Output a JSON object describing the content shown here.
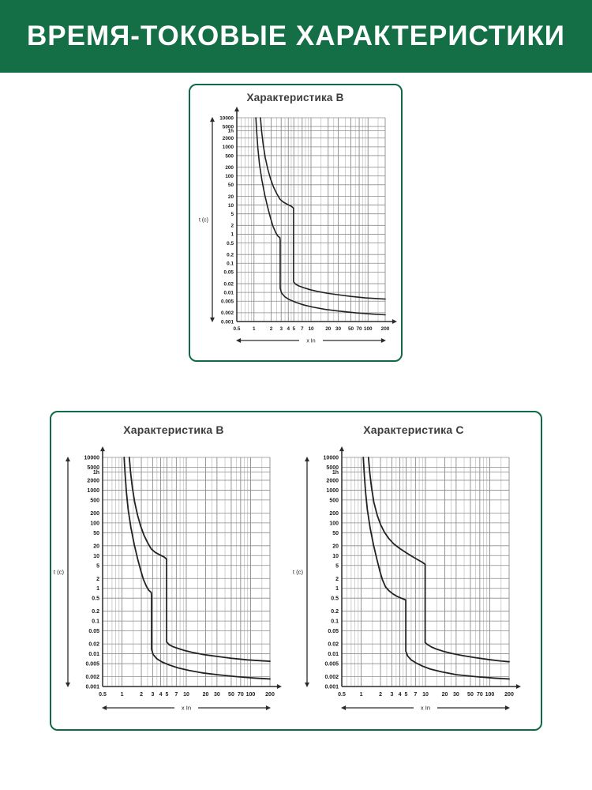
{
  "header": {
    "title": "ВРЕМЯ-ТОКОВЫЕ ХАРАКТЕРИСТИКИ",
    "bg": "#156f46",
    "fg": "#ffffff"
  },
  "colors": {
    "card_border": "#0e6b45",
    "curve": "#222222",
    "grid_major": "#8c8c8c",
    "grid_minor": "#bcbcbc",
    "axis": "#2b2b2b",
    "tick_text": "#1c1c1c",
    "title_text": "#3c3c3c"
  },
  "axes_common": {
    "xlabel": "x In",
    "ylabel": "t (c)",
    "xscale": "log",
    "yscale": "log",
    "xlim": [
      0.5,
      200
    ],
    "ylim": [
      0.001,
      10000
    ],
    "grid": true,
    "x_ticks": [
      {
        "v": 0.5,
        "l": "0.5"
      },
      {
        "v": 1,
        "l": "1"
      },
      {
        "v": 2,
        "l": "2"
      },
      {
        "v": 3,
        "l": "3"
      },
      {
        "v": 4,
        "l": "4"
      },
      {
        "v": 5,
        "l": "5"
      },
      {
        "v": 7,
        "l": "7"
      },
      {
        "v": 10,
        "l": "10"
      },
      {
        "v": 20,
        "l": "20"
      },
      {
        "v": 30,
        "l": "30"
      },
      {
        "v": 50,
        "l": "50"
      },
      {
        "v": 70,
        "l": "70"
      },
      {
        "v": 100,
        "l": "100"
      },
      {
        "v": 200,
        "l": "200"
      }
    ],
    "x_grid_minor": [
      0.6,
      0.7,
      0.8,
      0.9,
      1.5,
      2.5,
      3.5,
      4.5,
      6,
      8,
      9,
      15,
      25,
      40,
      60,
      80,
      90,
      150
    ],
    "y_ticks": [
      {
        "v": 10000,
        "l": "10000"
      },
      {
        "v": 5000,
        "l": "5000"
      },
      {
        "v": 3600,
        "l": "1h"
      },
      {
        "v": 2000,
        "l": "2000"
      },
      {
        "v": 1000,
        "l": "1000"
      },
      {
        "v": 500,
        "l": "500"
      },
      {
        "v": 200,
        "l": "200"
      },
      {
        "v": 100,
        "l": "100"
      },
      {
        "v": 50,
        "l": "50"
      },
      {
        "v": 20,
        "l": "20"
      },
      {
        "v": 10,
        "l": "10"
      },
      {
        "v": 5,
        "l": "5"
      },
      {
        "v": 2,
        "l": "2"
      },
      {
        "v": 1,
        "l": "1"
      },
      {
        "v": 0.5,
        "l": "0.5"
      },
      {
        "v": 0.2,
        "l": "0.2"
      },
      {
        "v": 0.1,
        "l": "0.1"
      },
      {
        "v": 0.05,
        "l": "0.05"
      },
      {
        "v": 0.02,
        "l": "0.02"
      },
      {
        "v": 0.01,
        "l": "0.01"
      },
      {
        "v": 0.005,
        "l": "0.005"
      },
      {
        "v": 0.002,
        "l": "0.002"
      },
      {
        "v": 0.001,
        "l": "0.001"
      }
    ]
  },
  "chart_data": [
    {
      "id": "top-characteristic-b",
      "type": "line",
      "title": "Характеристика B",
      "xlabel": "x In",
      "ylabel": "t (c)",
      "xlim": [
        0.5,
        200
      ],
      "ylim": [
        0.001,
        10000
      ],
      "series": [
        {
          "name": "lower-limit",
          "points": [
            [
              1.08,
              10000
            ],
            [
              1.12,
              3000
            ],
            [
              1.17,
              900
            ],
            [
              1.25,
              250
            ],
            [
              1.38,
              70
            ],
            [
              1.55,
              22
            ],
            [
              1.75,
              8
            ],
            [
              1.95,
              3.6
            ],
            [
              2.15,
              1.9
            ],
            [
              2.4,
              1.15
            ],
            [
              2.6,
              0.88
            ],
            [
              2.85,
              0.75
            ],
            [
              2.88,
              0.6
            ],
            [
              2.88,
              0.014
            ],
            [
              3.05,
              0.0095
            ],
            [
              3.5,
              0.007
            ],
            [
              4.2,
              0.0056
            ],
            [
              5.5,
              0.0045
            ],
            [
              7.5,
              0.0037
            ],
            [
              11,
              0.0031
            ],
            [
              18,
              0.0026
            ],
            [
              30,
              0.0023
            ],
            [
              60,
              0.002
            ],
            [
              120,
              0.0018
            ],
            [
              200,
              0.0017
            ]
          ]
        },
        {
          "name": "upper-limit",
          "points": [
            [
              1.3,
              10000
            ],
            [
              1.36,
              3500
            ],
            [
              1.45,
              1200
            ],
            [
              1.58,
              420
            ],
            [
              1.75,
              170
            ],
            [
              1.95,
              80
            ],
            [
              2.2,
              42
            ],
            [
              2.5,
              25
            ],
            [
              2.85,
              16
            ],
            [
              3.3,
              12.5
            ],
            [
              3.9,
              10.5
            ],
            [
              4.55,
              9
            ],
            [
              4.95,
              7.8
            ],
            [
              4.95,
              0.023
            ],
            [
              5.4,
              0.019
            ],
            [
              6.2,
              0.0165
            ],
            [
              7.5,
              0.0145
            ],
            [
              9.5,
              0.0125
            ],
            [
              13,
              0.0108
            ],
            [
              19,
              0.0094
            ],
            [
              30,
              0.0083
            ],
            [
              50,
              0.0073
            ],
            [
              90,
              0.0065
            ],
            [
              150,
              0.0061
            ],
            [
              200,
              0.0059
            ]
          ]
        }
      ]
    },
    {
      "id": "bottom-characteristic-b",
      "type": "line",
      "title": "Характеристика B",
      "xlabel": "x In",
      "ylabel": "t (c)",
      "xlim": [
        0.5,
        200
      ],
      "ylim": [
        0.001,
        10000
      ],
      "series": [
        {
          "name": "lower-limit",
          "points": [
            [
              1.08,
              10000
            ],
            [
              1.12,
              3000
            ],
            [
              1.17,
              900
            ],
            [
              1.25,
              250
            ],
            [
              1.38,
              70
            ],
            [
              1.55,
              22
            ],
            [
              1.75,
              8
            ],
            [
              1.95,
              3.6
            ],
            [
              2.15,
              1.9
            ],
            [
              2.4,
              1.15
            ],
            [
              2.6,
              0.88
            ],
            [
              2.85,
              0.75
            ],
            [
              2.88,
              0.6
            ],
            [
              2.88,
              0.014
            ],
            [
              3.05,
              0.0095
            ],
            [
              3.5,
              0.007
            ],
            [
              4.2,
              0.0056
            ],
            [
              5.5,
              0.0045
            ],
            [
              7.5,
              0.0037
            ],
            [
              11,
              0.0031
            ],
            [
              18,
              0.0026
            ],
            [
              30,
              0.0023
            ],
            [
              60,
              0.002
            ],
            [
              120,
              0.0018
            ],
            [
              200,
              0.0017
            ]
          ]
        },
        {
          "name": "upper-limit",
          "points": [
            [
              1.3,
              10000
            ],
            [
              1.36,
              3500
            ],
            [
              1.45,
              1200
            ],
            [
              1.58,
              420
            ],
            [
              1.75,
              170
            ],
            [
              1.95,
              80
            ],
            [
              2.2,
              42
            ],
            [
              2.5,
              25
            ],
            [
              2.85,
              16
            ],
            [
              3.3,
              12.5
            ],
            [
              3.9,
              10.5
            ],
            [
              4.55,
              9
            ],
            [
              4.95,
              7.8
            ],
            [
              4.95,
              0.023
            ],
            [
              5.4,
              0.019
            ],
            [
              6.2,
              0.0165
            ],
            [
              7.5,
              0.0145
            ],
            [
              9.5,
              0.0125
            ],
            [
              13,
              0.0108
            ],
            [
              19,
              0.0094
            ],
            [
              30,
              0.0083
            ],
            [
              50,
              0.0073
            ],
            [
              90,
              0.0065
            ],
            [
              150,
              0.0061
            ],
            [
              200,
              0.0059
            ]
          ]
        }
      ]
    },
    {
      "id": "bottom-characteristic-c",
      "type": "line",
      "title": "Характеристика C",
      "xlabel": "x In",
      "ylabel": "t (c)",
      "xlim": [
        0.5,
        200
      ],
      "ylim": [
        0.001,
        10000
      ],
      "series": [
        {
          "name": "lower-limit",
          "points": [
            [
              1.08,
              10000
            ],
            [
              1.12,
              3000
            ],
            [
              1.17,
              900
            ],
            [
              1.25,
              250
            ],
            [
              1.38,
              70
            ],
            [
              1.55,
              22
            ],
            [
              1.75,
              8
            ],
            [
              1.95,
              3.4
            ],
            [
              2.15,
              1.8
            ],
            [
              2.4,
              1.1
            ],
            [
              2.7,
              0.85
            ],
            [
              3.1,
              0.68
            ],
            [
              3.6,
              0.57
            ],
            [
              4.2,
              0.5
            ],
            [
              4.95,
              0.44
            ],
            [
              4.95,
              0.012
            ],
            [
              5.3,
              0.0085
            ],
            [
              6,
              0.0065
            ],
            [
              7.2,
              0.0052
            ],
            [
              9,
              0.0042
            ],
            [
              12,
              0.0034
            ],
            [
              18,
              0.0028
            ],
            [
              30,
              0.0023
            ],
            [
              60,
              0.002
            ],
            [
              120,
              0.0018
            ],
            [
              200,
              0.0017
            ]
          ]
        },
        {
          "name": "upper-limit",
          "points": [
            [
              1.3,
              10000
            ],
            [
              1.36,
              3500
            ],
            [
              1.45,
              1200
            ],
            [
              1.58,
              420
            ],
            [
              1.78,
              170
            ],
            [
              2.0,
              90
            ],
            [
              2.3,
              52
            ],
            [
              2.7,
              33
            ],
            [
              3.2,
              23
            ],
            [
              3.9,
              17
            ],
            [
              4.8,
              13
            ],
            [
              6.0,
              9.8
            ],
            [
              7.5,
              7.6
            ],
            [
              9.0,
              6.2
            ],
            [
              9.9,
              5.4
            ],
            [
              9.9,
              0.022
            ],
            [
              10.8,
              0.019
            ],
            [
              12.5,
              0.016
            ],
            [
              15,
              0.0138
            ],
            [
              19,
              0.0119
            ],
            [
              26,
              0.0102
            ],
            [
              38,
              0.0088
            ],
            [
              60,
              0.0076
            ],
            [
              100,
              0.0066
            ],
            [
              150,
              0.006
            ],
            [
              200,
              0.0057
            ]
          ]
        }
      ]
    }
  ]
}
